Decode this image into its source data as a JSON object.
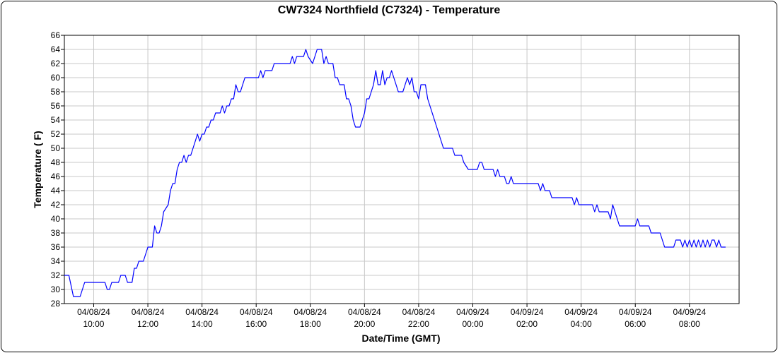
{
  "chart_data": {
    "type": "line",
    "title": "CW7324 Northfield (C7324) - Temperature",
    "xlabel": "Date/Time (GMT)",
    "ylabel": "Temperature ( F)",
    "ylim": [
      28,
      66
    ],
    "y_ticks": [
      28,
      30,
      32,
      34,
      36,
      38,
      40,
      42,
      44,
      46,
      48,
      50,
      52,
      54,
      56,
      58,
      60,
      62,
      64,
      66
    ],
    "xlim": [
      "2024-04-08 08:55",
      "2024-04-09 09:50"
    ],
    "x_ticks": [
      {
        "time": "2024-04-08 10:00",
        "date": "04/08/24",
        "clock": "10:00"
      },
      {
        "time": "2024-04-08 12:00",
        "date": "04/08/24",
        "clock": "12:00"
      },
      {
        "time": "2024-04-08 14:00",
        "date": "04/08/24",
        "clock": "14:00"
      },
      {
        "time": "2024-04-08 16:00",
        "date": "04/08/24",
        "clock": "16:00"
      },
      {
        "time": "2024-04-08 18:00",
        "date": "04/08/24",
        "clock": "18:00"
      },
      {
        "time": "2024-04-08 20:00",
        "date": "04/08/24",
        "clock": "20:00"
      },
      {
        "time": "2024-04-08 22:00",
        "date": "04/08/24",
        "clock": "22:00"
      },
      {
        "time": "2024-04-09 00:00",
        "date": "04/09/24",
        "clock": "00:00"
      },
      {
        "time": "2024-04-09 02:00",
        "date": "04/09/24",
        "clock": "02:00"
      },
      {
        "time": "2024-04-09 04:00",
        "date": "04/09/24",
        "clock": "04:00"
      },
      {
        "time": "2024-04-09 06:00",
        "date": "04/09/24",
        "clock": "06:00"
      },
      {
        "time": "2024-04-09 08:00",
        "date": "04/09/24",
        "clock": "08:00"
      }
    ],
    "grid": true,
    "colors": {
      "line": "#0000ff",
      "grid": "#c8c8c8",
      "axis": "#000000"
    },
    "series": [
      {
        "points": [
          [
            "2024-04-08 08:55",
            32
          ],
          [
            "2024-04-08 09:05",
            32
          ],
          [
            "2024-04-08 09:15",
            29
          ],
          [
            "2024-04-08 09:30",
            29
          ],
          [
            "2024-04-08 09:40",
            31
          ],
          [
            "2024-04-08 10:05",
            31
          ],
          [
            "2024-04-08 10:15",
            31
          ],
          [
            "2024-04-08 10:25",
            31
          ],
          [
            "2024-04-08 10:30",
            30
          ],
          [
            "2024-04-08 10:35",
            30
          ],
          [
            "2024-04-08 10:40",
            31
          ],
          [
            "2024-04-08 10:55",
            31
          ],
          [
            "2024-04-08 11:00",
            32
          ],
          [
            "2024-04-08 11:10",
            32
          ],
          [
            "2024-04-08 11:15",
            31
          ],
          [
            "2024-04-08 11:25",
            31
          ],
          [
            "2024-04-08 11:30",
            33
          ],
          [
            "2024-04-08 11:35",
            33
          ],
          [
            "2024-04-08 11:40",
            34
          ],
          [
            "2024-04-08 11:50",
            34
          ],
          [
            "2024-04-08 12:00",
            36
          ],
          [
            "2024-04-08 12:10",
            36
          ],
          [
            "2024-04-08 12:15",
            39
          ],
          [
            "2024-04-08 12:20",
            38
          ],
          [
            "2024-04-08 12:25",
            38
          ],
          [
            "2024-04-08 12:30",
            39
          ],
          [
            "2024-04-08 12:35",
            41
          ],
          [
            "2024-04-08 12:45",
            42
          ],
          [
            "2024-04-08 12:50",
            44
          ],
          [
            "2024-04-08 12:55",
            45
          ],
          [
            "2024-04-08 13:00",
            45
          ],
          [
            "2024-04-08 13:05",
            47
          ],
          [
            "2024-04-08 13:10",
            48
          ],
          [
            "2024-04-08 13:15",
            48
          ],
          [
            "2024-04-08 13:20",
            49
          ],
          [
            "2024-04-08 13:25",
            48
          ],
          [
            "2024-04-08 13:30",
            49
          ],
          [
            "2024-04-08 13:35",
            49
          ],
          [
            "2024-04-08 13:45",
            51
          ],
          [
            "2024-04-08 13:50",
            52
          ],
          [
            "2024-04-08 13:55",
            51
          ],
          [
            "2024-04-08 14:00",
            52
          ],
          [
            "2024-04-08 14:05",
            52
          ],
          [
            "2024-04-08 14:10",
            53
          ],
          [
            "2024-04-08 14:15",
            53
          ],
          [
            "2024-04-08 14:20",
            54
          ],
          [
            "2024-04-08 14:25",
            54
          ],
          [
            "2024-04-08 14:30",
            55
          ],
          [
            "2024-04-08 14:40",
            55
          ],
          [
            "2024-04-08 14:45",
            56
          ],
          [
            "2024-04-08 14:50",
            55
          ],
          [
            "2024-04-08 14:55",
            56
          ],
          [
            "2024-04-08 15:00",
            56
          ],
          [
            "2024-04-08 15:05",
            57
          ],
          [
            "2024-04-08 15:10",
            57
          ],
          [
            "2024-04-08 15:15",
            59
          ],
          [
            "2024-04-08 15:20",
            58
          ],
          [
            "2024-04-08 15:25",
            58
          ],
          [
            "2024-04-08 15:35",
            60
          ],
          [
            "2024-04-08 16:00",
            60
          ],
          [
            "2024-04-08 16:05",
            60
          ],
          [
            "2024-04-08 16:10",
            61
          ],
          [
            "2024-04-08 16:15",
            60
          ],
          [
            "2024-04-08 16:20",
            61
          ],
          [
            "2024-04-08 16:35",
            61
          ],
          [
            "2024-04-08 16:40",
            62
          ],
          [
            "2024-04-08 17:15",
            62
          ],
          [
            "2024-04-08 17:20",
            63
          ],
          [
            "2024-04-08 17:25",
            62
          ],
          [
            "2024-04-08 17:30",
            63
          ],
          [
            "2024-04-08 17:45",
            63
          ],
          [
            "2024-04-08 17:50",
            64
          ],
          [
            "2024-04-08 17:55",
            63
          ],
          [
            "2024-04-08 18:05",
            62
          ],
          [
            "2024-04-08 18:10",
            63
          ],
          [
            "2024-04-08 18:15",
            64
          ],
          [
            "2024-04-08 18:25",
            64
          ],
          [
            "2024-04-08 18:30",
            62
          ],
          [
            "2024-04-08 18:35",
            63
          ],
          [
            "2024-04-08 18:40",
            62
          ],
          [
            "2024-04-08 18:50",
            62
          ],
          [
            "2024-04-08 18:55",
            60
          ],
          [
            "2024-04-08 19:00",
            60
          ],
          [
            "2024-04-08 19:05",
            59
          ],
          [
            "2024-04-08 19:15",
            59
          ],
          [
            "2024-04-08 19:20",
            57
          ],
          [
            "2024-04-08 19:25",
            57
          ],
          [
            "2024-04-08 19:30",
            56
          ],
          [
            "2024-04-08 19:35",
            54
          ],
          [
            "2024-04-08 19:40",
            53
          ],
          [
            "2024-04-08 19:50",
            53
          ],
          [
            "2024-04-08 19:55",
            54
          ],
          [
            "2024-04-08 20:00",
            55
          ],
          [
            "2024-04-08 20:05",
            57
          ],
          [
            "2024-04-08 20:10",
            57
          ],
          [
            "2024-04-08 20:15",
            58
          ],
          [
            "2024-04-08 20:20",
            59
          ],
          [
            "2024-04-08 20:25",
            61
          ],
          [
            "2024-04-08 20:30",
            59
          ],
          [
            "2024-04-08 20:35",
            59
          ],
          [
            "2024-04-08 20:40",
            61
          ],
          [
            "2024-04-08 20:45",
            59
          ],
          [
            "2024-04-08 20:50",
            60
          ],
          [
            "2024-04-08 20:55",
            60
          ],
          [
            "2024-04-08 21:00",
            61
          ],
          [
            "2024-04-08 21:05",
            60
          ],
          [
            "2024-04-08 21:10",
            59
          ],
          [
            "2024-04-08 21:15",
            58
          ],
          [
            "2024-04-08 21:25",
            58
          ],
          [
            "2024-04-08 21:30",
            59
          ],
          [
            "2024-04-08 21:35",
            60
          ],
          [
            "2024-04-08 21:40",
            59
          ],
          [
            "2024-04-08 21:45",
            60
          ],
          [
            "2024-04-08 21:50",
            58
          ],
          [
            "2024-04-08 21:55",
            58
          ],
          [
            "2024-04-08 22:00",
            57
          ],
          [
            "2024-04-08 22:05",
            59
          ],
          [
            "2024-04-08 22:15",
            59
          ],
          [
            "2024-04-08 22:20",
            57
          ],
          [
            "2024-04-08 22:35",
            54
          ],
          [
            "2024-04-08 22:50",
            51
          ],
          [
            "2024-04-08 22:55",
            50
          ],
          [
            "2024-04-08 23:15",
            50
          ],
          [
            "2024-04-08 23:20",
            49
          ],
          [
            "2024-04-08 23:35",
            49
          ],
          [
            "2024-04-08 23:40",
            48
          ],
          [
            "2024-04-08 23:50",
            47
          ],
          [
            "2024-04-09 00:10",
            47
          ],
          [
            "2024-04-09 00:15",
            48
          ],
          [
            "2024-04-09 00:20",
            48
          ],
          [
            "2024-04-09 00:25",
            47
          ],
          [
            "2024-04-09 00:45",
            47
          ],
          [
            "2024-04-09 00:50",
            46
          ],
          [
            "2024-04-09 00:55",
            47
          ],
          [
            "2024-04-09 01:00",
            46
          ],
          [
            "2024-04-09 01:10",
            46
          ],
          [
            "2024-04-09 01:15",
            45
          ],
          [
            "2024-04-09 01:20",
            45
          ],
          [
            "2024-04-09 01:25",
            46
          ],
          [
            "2024-04-09 01:30",
            45
          ],
          [
            "2024-04-09 02:25",
            45
          ],
          [
            "2024-04-09 02:30",
            44
          ],
          [
            "2024-04-09 02:35",
            45
          ],
          [
            "2024-04-09 02:40",
            44
          ],
          [
            "2024-04-09 02:50",
            44
          ],
          [
            "2024-04-09 02:55",
            43
          ],
          [
            "2024-04-09 03:40",
            43
          ],
          [
            "2024-04-09 03:45",
            42
          ],
          [
            "2024-04-09 03:50",
            43
          ],
          [
            "2024-04-09 03:55",
            42
          ],
          [
            "2024-04-09 04:25",
            42
          ],
          [
            "2024-04-09 04:30",
            41
          ],
          [
            "2024-04-09 04:35",
            42
          ],
          [
            "2024-04-09 04:40",
            41
          ],
          [
            "2024-04-09 05:00",
            41
          ],
          [
            "2024-04-09 05:05",
            40
          ],
          [
            "2024-04-09 05:10",
            42
          ],
          [
            "2024-04-09 05:25",
            39
          ],
          [
            "2024-04-09 06:00",
            39
          ],
          [
            "2024-04-09 06:05",
            40
          ],
          [
            "2024-04-09 06:10",
            39
          ],
          [
            "2024-04-09 06:30",
            39
          ],
          [
            "2024-04-09 06:35",
            38
          ],
          [
            "2024-04-09 06:55",
            38
          ],
          [
            "2024-04-09 07:05",
            36
          ],
          [
            "2024-04-09 07:25",
            36
          ],
          [
            "2024-04-09 07:30",
            37
          ],
          [
            "2024-04-09 07:40",
            37
          ],
          [
            "2024-04-09 07:45",
            36
          ],
          [
            "2024-04-09 07:50",
            37
          ],
          [
            "2024-04-09 07:55",
            36
          ],
          [
            "2024-04-09 08:00",
            37
          ],
          [
            "2024-04-09 08:05",
            36
          ],
          [
            "2024-04-09 08:10",
            37
          ],
          [
            "2024-04-09 08:15",
            36
          ],
          [
            "2024-04-09 08:20",
            37
          ],
          [
            "2024-04-09 08:25",
            36
          ],
          [
            "2024-04-09 08:30",
            37
          ],
          [
            "2024-04-09 08:35",
            36
          ],
          [
            "2024-04-09 08:40",
            37
          ],
          [
            "2024-04-09 08:45",
            36
          ],
          [
            "2024-04-09 08:50",
            37
          ],
          [
            "2024-04-09 08:55",
            37
          ],
          [
            "2024-04-09 09:00",
            36
          ],
          [
            "2024-04-09 09:05",
            37
          ],
          [
            "2024-04-09 09:10",
            36
          ],
          [
            "2024-04-09 09:20",
            36
          ]
        ]
      }
    ]
  }
}
